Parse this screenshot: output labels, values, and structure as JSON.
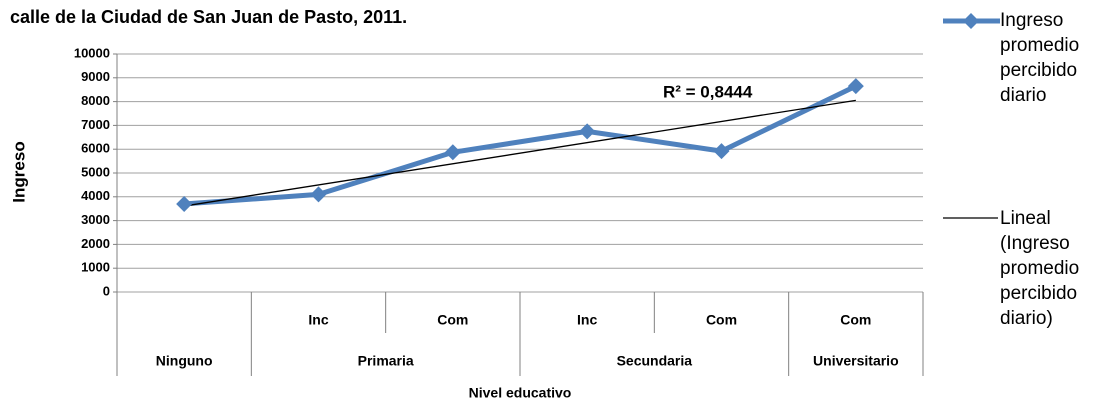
{
  "chart_data": {
    "type": "line",
    "title": "calle de la Ciudad de San Juan de Pasto, 2011.",
    "categories": [
      null,
      "Inc",
      "Com",
      "Inc",
      "Com",
      "Com"
    ],
    "category_groups": [
      "Ninguno",
      "Primaria",
      "Primaria",
      "Secundaria",
      "Secundaria",
      "Universitario"
    ],
    "series": [
      {
        "name": "Ingreso promedio percibido diario",
        "color": "#4f81bd",
        "values": [
          3700,
          4100,
          5870,
          6750,
          5920,
          8650
        ]
      }
    ],
    "trendline": {
      "name": "Lineal (Ingreso promedio percibido diario)",
      "color": "#000000",
      "annotation": "R² = 0,8444"
    },
    "ylim": [
      0,
      10000
    ],
    "yticks": [
      0,
      1000,
      2000,
      3000,
      4000,
      5000,
      6000,
      7000,
      8000,
      9000,
      10000
    ],
    "ylabel": "Ingreso",
    "xlabel": "Nivel educativo",
    "grid": true
  }
}
